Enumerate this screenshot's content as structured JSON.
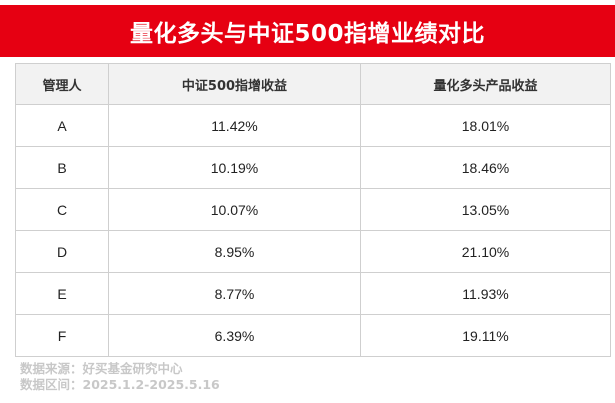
{
  "title": "量化多头与中证500指增业绩对比",
  "table": {
    "headers": [
      "管理人",
      "中证500指增收益",
      "量化多头产品收益"
    ],
    "rows": [
      [
        "A",
        "11.42%",
        "18.01%"
      ],
      [
        "B",
        "10.19%",
        "18.46%"
      ],
      [
        "C",
        "10.07%",
        "13.05%"
      ],
      [
        "D",
        "8.95%",
        "21.10%"
      ],
      [
        "E",
        "8.77%",
        "11.93%"
      ],
      [
        "F",
        "6.39%",
        "19.11%"
      ]
    ]
  },
  "footer": {
    "source": "数据来源：好买基金研究中心",
    "period": "数据区间：2025.1.2-2025.5.16"
  },
  "colors": {
    "banner": "#e60012",
    "header_bg": "#f2f2f2",
    "border": "#cfcfcf",
    "footer_text": "#c8c8c8"
  }
}
